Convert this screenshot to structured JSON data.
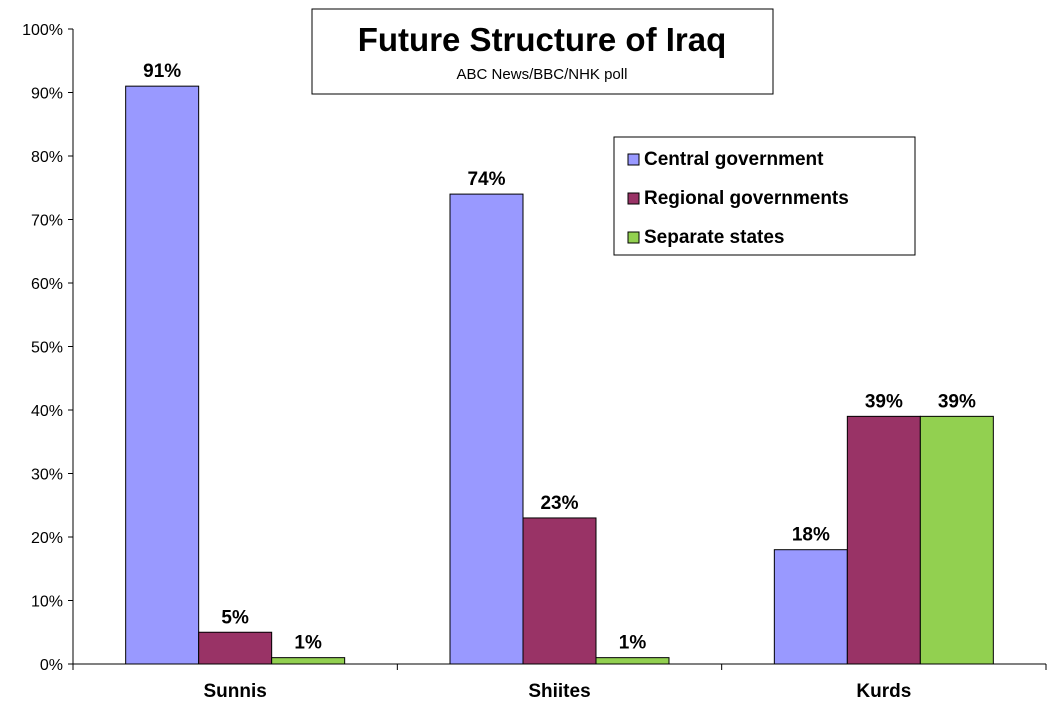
{
  "chart_data": {
    "type": "bar",
    "title": "Future Structure of Iraq",
    "subtitle": "ABC News/BBC/NHK poll",
    "categories": [
      "Sunnis",
      "Shiites",
      "Kurds"
    ],
    "series": [
      {
        "name": "Central government",
        "values": [
          91,
          74,
          18
        ],
        "labels": [
          "91%",
          "74%",
          "18%"
        ],
        "color": "#9999ff"
      },
      {
        "name": "Regional governments",
        "values": [
          5,
          23,
          39
        ],
        "labels": [
          "5%",
          "23%",
          "39%"
        ],
        "color": "#993366"
      },
      {
        "name": "Separate states",
        "values": [
          1,
          1,
          39
        ],
        "labels": [
          "1%",
          "1%",
          "39%"
        ],
        "color": "#92d050"
      }
    ],
    "y_ticks": [
      "0%",
      "10%",
      "20%",
      "30%",
      "40%",
      "50%",
      "60%",
      "70%",
      "80%",
      "90%",
      "100%"
    ],
    "ylim": [
      0,
      100
    ],
    "grid": false,
    "legend_position": "top-right"
  }
}
